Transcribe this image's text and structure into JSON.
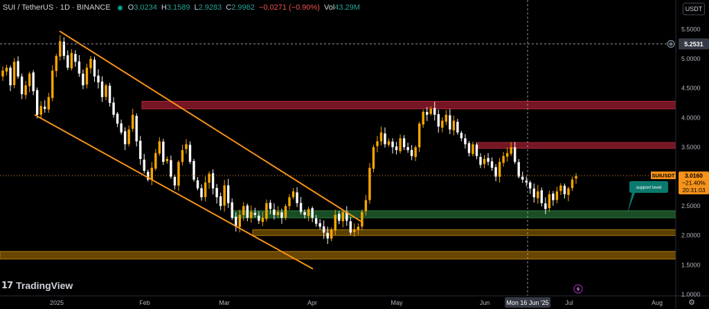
{
  "header": {
    "symbol": "SUI / TetherUS · 1D · BINANCE",
    "open_label": "O",
    "open": "3.0234",
    "high_label": "H",
    "high": "3.1589",
    "low_label": "L",
    "low": "2.9283",
    "close_label": "C",
    "close": "2.9962",
    "change": "−0.0271 (−0.90%)",
    "vol_label": "Vol",
    "vol": "43.29M"
  },
  "currency_button": "USDT",
  "brand": {
    "logo": "17",
    "name": "TradingView"
  },
  "annotation": "support level",
  "last_price": {
    "symbol": "SUIUSDT",
    "price": "3.0160",
    "change_pct": "−21.40%",
    "countdown": "20:31:03"
  },
  "crosshair_price": "5.2531",
  "crosshair_date": "Mon 16 Jun '25",
  "icons": {
    "gear": "gear-icon",
    "crosshair_plus": "plus-circle-icon",
    "lightning": "lightning-icon",
    "logo": "tradingview-logo"
  },
  "colors": {
    "up": "#f7a600",
    "down": "#ffffff",
    "trend": "#f7931a",
    "resistance": "#8b1a2a",
    "support": "#1f5a2c",
    "base": "#7a5200",
    "callout": "#0b7a6e"
  },
  "chart_data": {
    "type": "candlestick",
    "yaxis": {
      "ticks": [
        5.5,
        5.0,
        4.5,
        4.0,
        3.5,
        3.0,
        2.5,
        2.0,
        1.5,
        1.0
      ],
      "range": [
        1.0,
        5.75
      ]
    },
    "xaxis": {
      "ticks": [
        "2025",
        "Feb",
        "Mar",
        "Apr",
        "May",
        "Jun",
        "Jul",
        "Aug"
      ]
    },
    "candles_close": [
      4.8,
      4.85,
      4.55,
      4.95,
      4.7,
      4.4,
      4.55,
      4.75,
      4.45,
      4.05,
      4.2,
      4.15,
      4.35,
      4.8,
      5.05,
      5.3,
      5.05,
      4.85,
      5.1,
      4.95,
      4.75,
      4.55,
      4.85,
      5.0,
      4.7,
      4.6,
      4.35,
      4.55,
      4.25,
      4.05,
      3.9,
      3.75,
      3.55,
      3.8,
      4.05,
      3.6,
      3.3,
      3.1,
      2.95,
      3.15,
      3.4,
      3.6,
      3.25,
      3.3,
      3.0,
      2.85,
      3.25,
      3.45,
      3.55,
      3.25,
      2.95,
      2.8,
      2.65,
      2.9,
      3.05,
      2.8,
      2.65,
      2.5,
      2.85,
      2.55,
      2.3,
      2.15,
      2.35,
      2.5,
      2.3,
      2.4,
      2.35,
      2.25,
      2.3,
      2.55,
      2.45,
      2.35,
      2.4,
      2.3,
      2.5,
      2.65,
      2.75,
      2.55,
      2.4,
      2.35,
      2.45,
      2.3,
      2.2,
      2.15,
      2.05,
      1.95,
      2.1,
      2.35,
      2.25,
      2.4,
      2.25,
      2.05,
      2.1,
      2.15,
      2.4,
      2.6,
      3.15,
      3.5,
      3.6,
      3.75,
      3.55,
      3.6,
      3.5,
      3.45,
      3.65,
      3.5,
      3.45,
      3.35,
      3.5,
      3.9,
      4.1,
      4.05,
      4.15,
      4.05,
      3.85,
      3.95,
      4.05,
      3.8,
      3.95,
      3.75,
      3.65,
      3.55,
      3.4,
      3.55,
      3.35,
      3.2,
      3.3,
      3.25,
      3.15,
      3.0,
      3.25,
      3.35,
      3.4,
      3.5,
      3.25,
      3.0,
      2.95,
      2.9,
      2.8,
      2.65,
      2.75,
      2.55,
      2.45,
      2.7,
      2.6,
      2.75,
      2.85,
      2.7,
      2.8,
      2.95,
      3.01
    ],
    "levels": [
      {
        "name": "resistance-upper",
        "from": 4.15,
        "to": 4.28
      },
      {
        "name": "resistance-lower",
        "from": 3.48,
        "to": 3.58
      },
      {
        "name": "support-green",
        "from": 2.3,
        "to": 2.42
      },
      {
        "name": "support-orange",
        "from": 2.0,
        "to": 2.1
      },
      {
        "name": "base-orange",
        "from": 1.6,
        "to": 1.73
      }
    ],
    "crosshair_level": 5.2531,
    "last_price_level": 3.016
  }
}
